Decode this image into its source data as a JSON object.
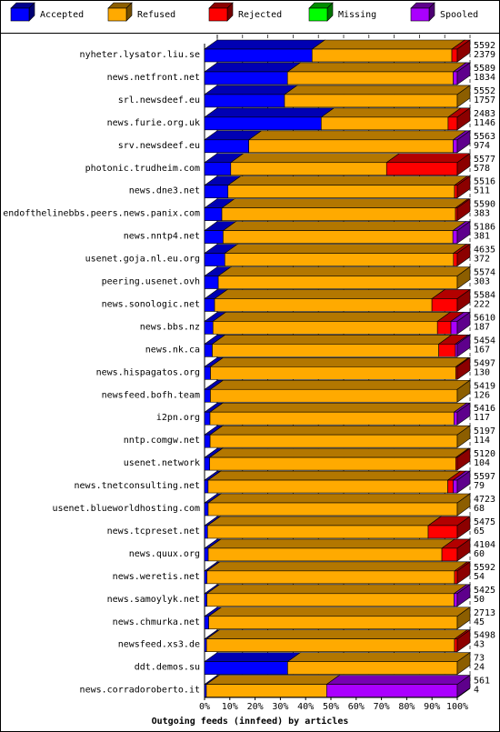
{
  "chart_data": {
    "type": "bar",
    "orientation": "horizontal",
    "stacked": true,
    "style": "3d",
    "xlabel": "Outgoing feeds (innfeed) by articles",
    "xlim": [
      0,
      100
    ],
    "x_ticks": [
      "0%",
      "10%",
      "20%",
      "30%",
      "40%",
      "50%",
      "60%",
      "70%",
      "80%",
      "90%",
      "100%"
    ],
    "legend_position": "top",
    "series": [
      {
        "name": "Accepted",
        "color": "#0000ff"
      },
      {
        "name": "Refused",
        "color": "#ffaa00"
      },
      {
        "name": "Rejected",
        "color": "#ff0000"
      },
      {
        "name": "Missing",
        "color": "#00ff00"
      },
      {
        "name": "Spooled",
        "color": "#aa00ff"
      }
    ],
    "feeds": [
      {
        "name": "nyheter.lysator.liu.se",
        "offered": 5592,
        "accepted": 2379,
        "rejected": 120,
        "missing": 0,
        "spooled": 0
      },
      {
        "name": "news.netfront.net",
        "offered": 5589,
        "accepted": 1834,
        "rejected": 0,
        "missing": 0,
        "spooled": 90
      },
      {
        "name": "srl.newsdeef.eu",
        "offered": 5552,
        "accepted": 1757,
        "rejected": 0,
        "missing": 0,
        "spooled": 0
      },
      {
        "name": "news.furie.org.uk",
        "offered": 2483,
        "accepted": 1146,
        "rejected": 90,
        "missing": 0,
        "spooled": 0
      },
      {
        "name": "srv.newsdeef.eu",
        "offered": 5563,
        "accepted": 974,
        "rejected": 0,
        "missing": 0,
        "spooled": 90
      },
      {
        "name": "photonic.trudheim.com",
        "offered": 5577,
        "accepted": 578,
        "rejected": 1560,
        "missing": 0,
        "spooled": 0
      },
      {
        "name": "news.dne3.net",
        "offered": 5516,
        "accepted": 511,
        "rejected": 60,
        "missing": 0,
        "spooled": 0
      },
      {
        "name": "endofthelinebbs.peers.news.panix.com",
        "offered": 5590,
        "accepted": 383,
        "rejected": 40,
        "missing": 0,
        "spooled": 0
      },
      {
        "name": "news.nntp4.net",
        "offered": 5186,
        "accepted": 381,
        "rejected": 0,
        "missing": 0,
        "spooled": 90
      },
      {
        "name": "usenet.goja.nl.eu.org",
        "offered": 4635,
        "accepted": 372,
        "rejected": 70,
        "missing": 0,
        "spooled": 0
      },
      {
        "name": "peering.usenet.ovh",
        "offered": 5574,
        "accepted": 303,
        "rejected": 0,
        "missing": 0,
        "spooled": 0
      },
      {
        "name": "news.sonologic.net",
        "offered": 5584,
        "accepted": 222,
        "rejected": 560,
        "missing": 0,
        "spooled": 0
      },
      {
        "name": "news.bbs.nz",
        "offered": 5610,
        "accepted": 187,
        "rejected": 300,
        "missing": 0,
        "spooled": 140
      },
      {
        "name": "news.nk.ca",
        "offered": 5454,
        "accepted": 167,
        "rejected": 360,
        "missing": 0,
        "spooled": 40
      },
      {
        "name": "news.hispagatos.org",
        "offered": 5497,
        "accepted": 130,
        "rejected": 30,
        "missing": 0,
        "spooled": 0
      },
      {
        "name": "newsfeed.bofh.team",
        "offered": 5419,
        "accepted": 126,
        "rejected": 0,
        "missing": 0,
        "spooled": 0
      },
      {
        "name": "i2pn.org",
        "offered": 5416,
        "accepted": 117,
        "rejected": 0,
        "missing": 0,
        "spooled": 70
      },
      {
        "name": "nntp.comgw.net",
        "offered": 5197,
        "accepted": 114,
        "rejected": 0,
        "missing": 0,
        "spooled": 0
      },
      {
        "name": "usenet.network",
        "offered": 5120,
        "accepted": 104,
        "rejected": 30,
        "missing": 0,
        "spooled": 0
      },
      {
        "name": "news.tnetconsulting.net",
        "offered": 5597,
        "accepted": 79,
        "rejected": 120,
        "missing": 0,
        "spooled": 90
      },
      {
        "name": "usenet.blueworldhosting.com",
        "offered": 4723,
        "accepted": 68,
        "rejected": 0,
        "missing": 0,
        "spooled": 0
      },
      {
        "name": "news.tcpreset.net",
        "offered": 5475,
        "accepted": 65,
        "rejected": 630,
        "missing": 0,
        "spooled": 0
      },
      {
        "name": "news.quux.org",
        "offered": 4104,
        "accepted": 60,
        "rejected": 250,
        "missing": 0,
        "spooled": 0
      },
      {
        "name": "news.weretis.net",
        "offered": 5592,
        "accepted": 54,
        "rejected": 60,
        "missing": 0,
        "spooled": 0
      },
      {
        "name": "news.samoylyk.net",
        "offered": 5425,
        "accepted": 50,
        "rejected": 0,
        "missing": 0,
        "spooled": 70
      },
      {
        "name": "news.chmurka.net",
        "offered": 2713,
        "accepted": 45,
        "rejected": 0,
        "missing": 0,
        "spooled": 0
      },
      {
        "name": "newsfeed.xs3.de",
        "offered": 5498,
        "accepted": 43,
        "rejected": 60,
        "missing": 0,
        "spooled": 0
      },
      {
        "name": "ddt.demos.su",
        "offered": 73,
        "accepted": 24,
        "rejected": 0,
        "missing": 0,
        "spooled": 0
      },
      {
        "name": "news.corradoroberto.it",
        "offered": 561,
        "accepted": 4,
        "rejected": 0,
        "missing": 0,
        "spooled": 290
      }
    ]
  }
}
